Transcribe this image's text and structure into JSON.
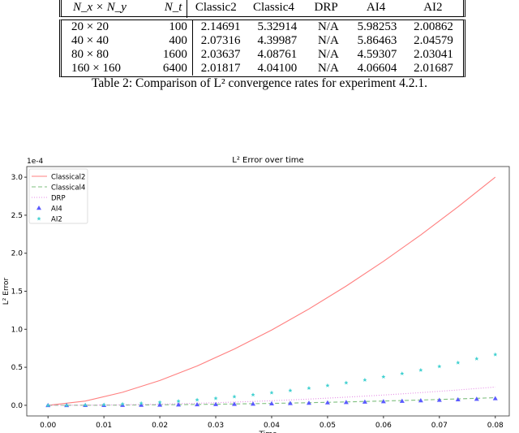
{
  "table": {
    "headers": [
      "N_x × N_y",
      "N_t",
      "Classic2",
      "Classic4",
      "DRP",
      "AI4",
      "AI2"
    ],
    "rows": [
      [
        "20 × 20",
        "100",
        "2.14691",
        "5.32914",
        "N/A",
        "5.98253",
        "2.00862"
      ],
      [
        "40 × 40",
        "400",
        "2.07316",
        "4.39987",
        "N/A",
        "5.86463",
        "2.04579"
      ],
      [
        "80 × 80",
        "1600",
        "2.03637",
        "4.08761",
        "N/A",
        "4.59307",
        "2.03041"
      ],
      [
        "160 × 160",
        "6400",
        "2.01817",
        "4.04100",
        "N/A",
        "4.06604",
        "2.01687"
      ]
    ],
    "caption": "Table 2: Comparison of L² convergence rates for experiment 4.2.1."
  },
  "chart_data": {
    "type": "line",
    "title": "L² Error over time",
    "xlabel": "Time",
    "ylabel": "L² Error",
    "y_offset_text": "1e-4",
    "xlim": [
      -0.0038,
      0.0825
    ],
    "ylim": [
      -0.14,
      3.14
    ],
    "xticks": [
      "0.00",
      "0.01",
      "0.02",
      "0.03",
      "0.04",
      "0.05",
      "0.06",
      "0.07",
      "0.08"
    ],
    "yticks": [
      "0.0",
      "0.5",
      "1.0",
      "1.5",
      "2.0",
      "2.5",
      "3.0"
    ],
    "grid": false,
    "legend_placement": "top-left",
    "line_x": [
      0,
      0.00667,
      0.01333,
      0.02,
      0.02667,
      0.03333,
      0.04,
      0.04667,
      0.05333,
      0.06,
      0.06667,
      0.07333,
      0.08
    ],
    "marker_x": [
      0,
      0.00333,
      0.00667,
      0.01,
      0.01333,
      0.01667,
      0.02,
      0.02333,
      0.02667,
      0.03,
      0.03333,
      0.03667,
      0.04,
      0.04333,
      0.04667,
      0.05,
      0.05333,
      0.05667,
      0.06,
      0.06333,
      0.06667,
      0.07,
      0.07333,
      0.07667,
      0.08
    ],
    "series": [
      {
        "name": "Classical2",
        "kind": "line",
        "dash": "",
        "color": "#ff7f7f",
        "values": [
          0,
          0.056,
          0.171,
          0.326,
          0.517,
          0.74,
          0.99,
          1.267,
          1.568,
          1.893,
          2.241,
          2.61,
          3.0
        ]
      },
      {
        "name": "Classical4",
        "kind": "line",
        "dash": "5,3",
        "color": "#7fbf7f",
        "values": [
          0,
          0.0007,
          0.0028,
          0.0063,
          0.0111,
          0.0174,
          0.025,
          0.034,
          0.0444,
          0.0563,
          0.0694,
          0.084,
          0.1
        ]
      },
      {
        "name": "DRP",
        "kind": "line",
        "dash": "1,2",
        "color": "#e58be5",
        "values": [
          0,
          0.0017,
          0.0067,
          0.015,
          0.0267,
          0.0417,
          0.06,
          0.0817,
          0.1067,
          0.135,
          0.1667,
          0.2017,
          0.24
        ]
      },
      {
        "name": "AI4",
        "kind": "triangle",
        "color": "#5a5aff",
        "values": [
          0,
          0.0002,
          0.0006,
          0.0014,
          0.0025,
          0.0039,
          0.0056,
          0.0077,
          0.01,
          0.0127,
          0.0156,
          0.0189,
          0.0225,
          0.0264,
          0.0306,
          0.0352,
          0.04,
          0.0452,
          0.0506,
          0.0564,
          0.0625,
          0.0689,
          0.0756,
          0.0827,
          0.09
        ]
      },
      {
        "name": "AI2",
        "kind": "star",
        "color": "#40d0d0",
        "values": [
          0,
          0.001,
          0.005,
          0.01,
          0.019,
          0.029,
          0.042,
          0.057,
          0.074,
          0.094,
          0.116,
          0.141,
          0.168,
          0.197,
          0.228,
          0.262,
          0.298,
          0.336,
          0.377,
          0.42,
          0.465,
          0.513,
          0.563,
          0.615,
          0.67
        ]
      }
    ]
  }
}
